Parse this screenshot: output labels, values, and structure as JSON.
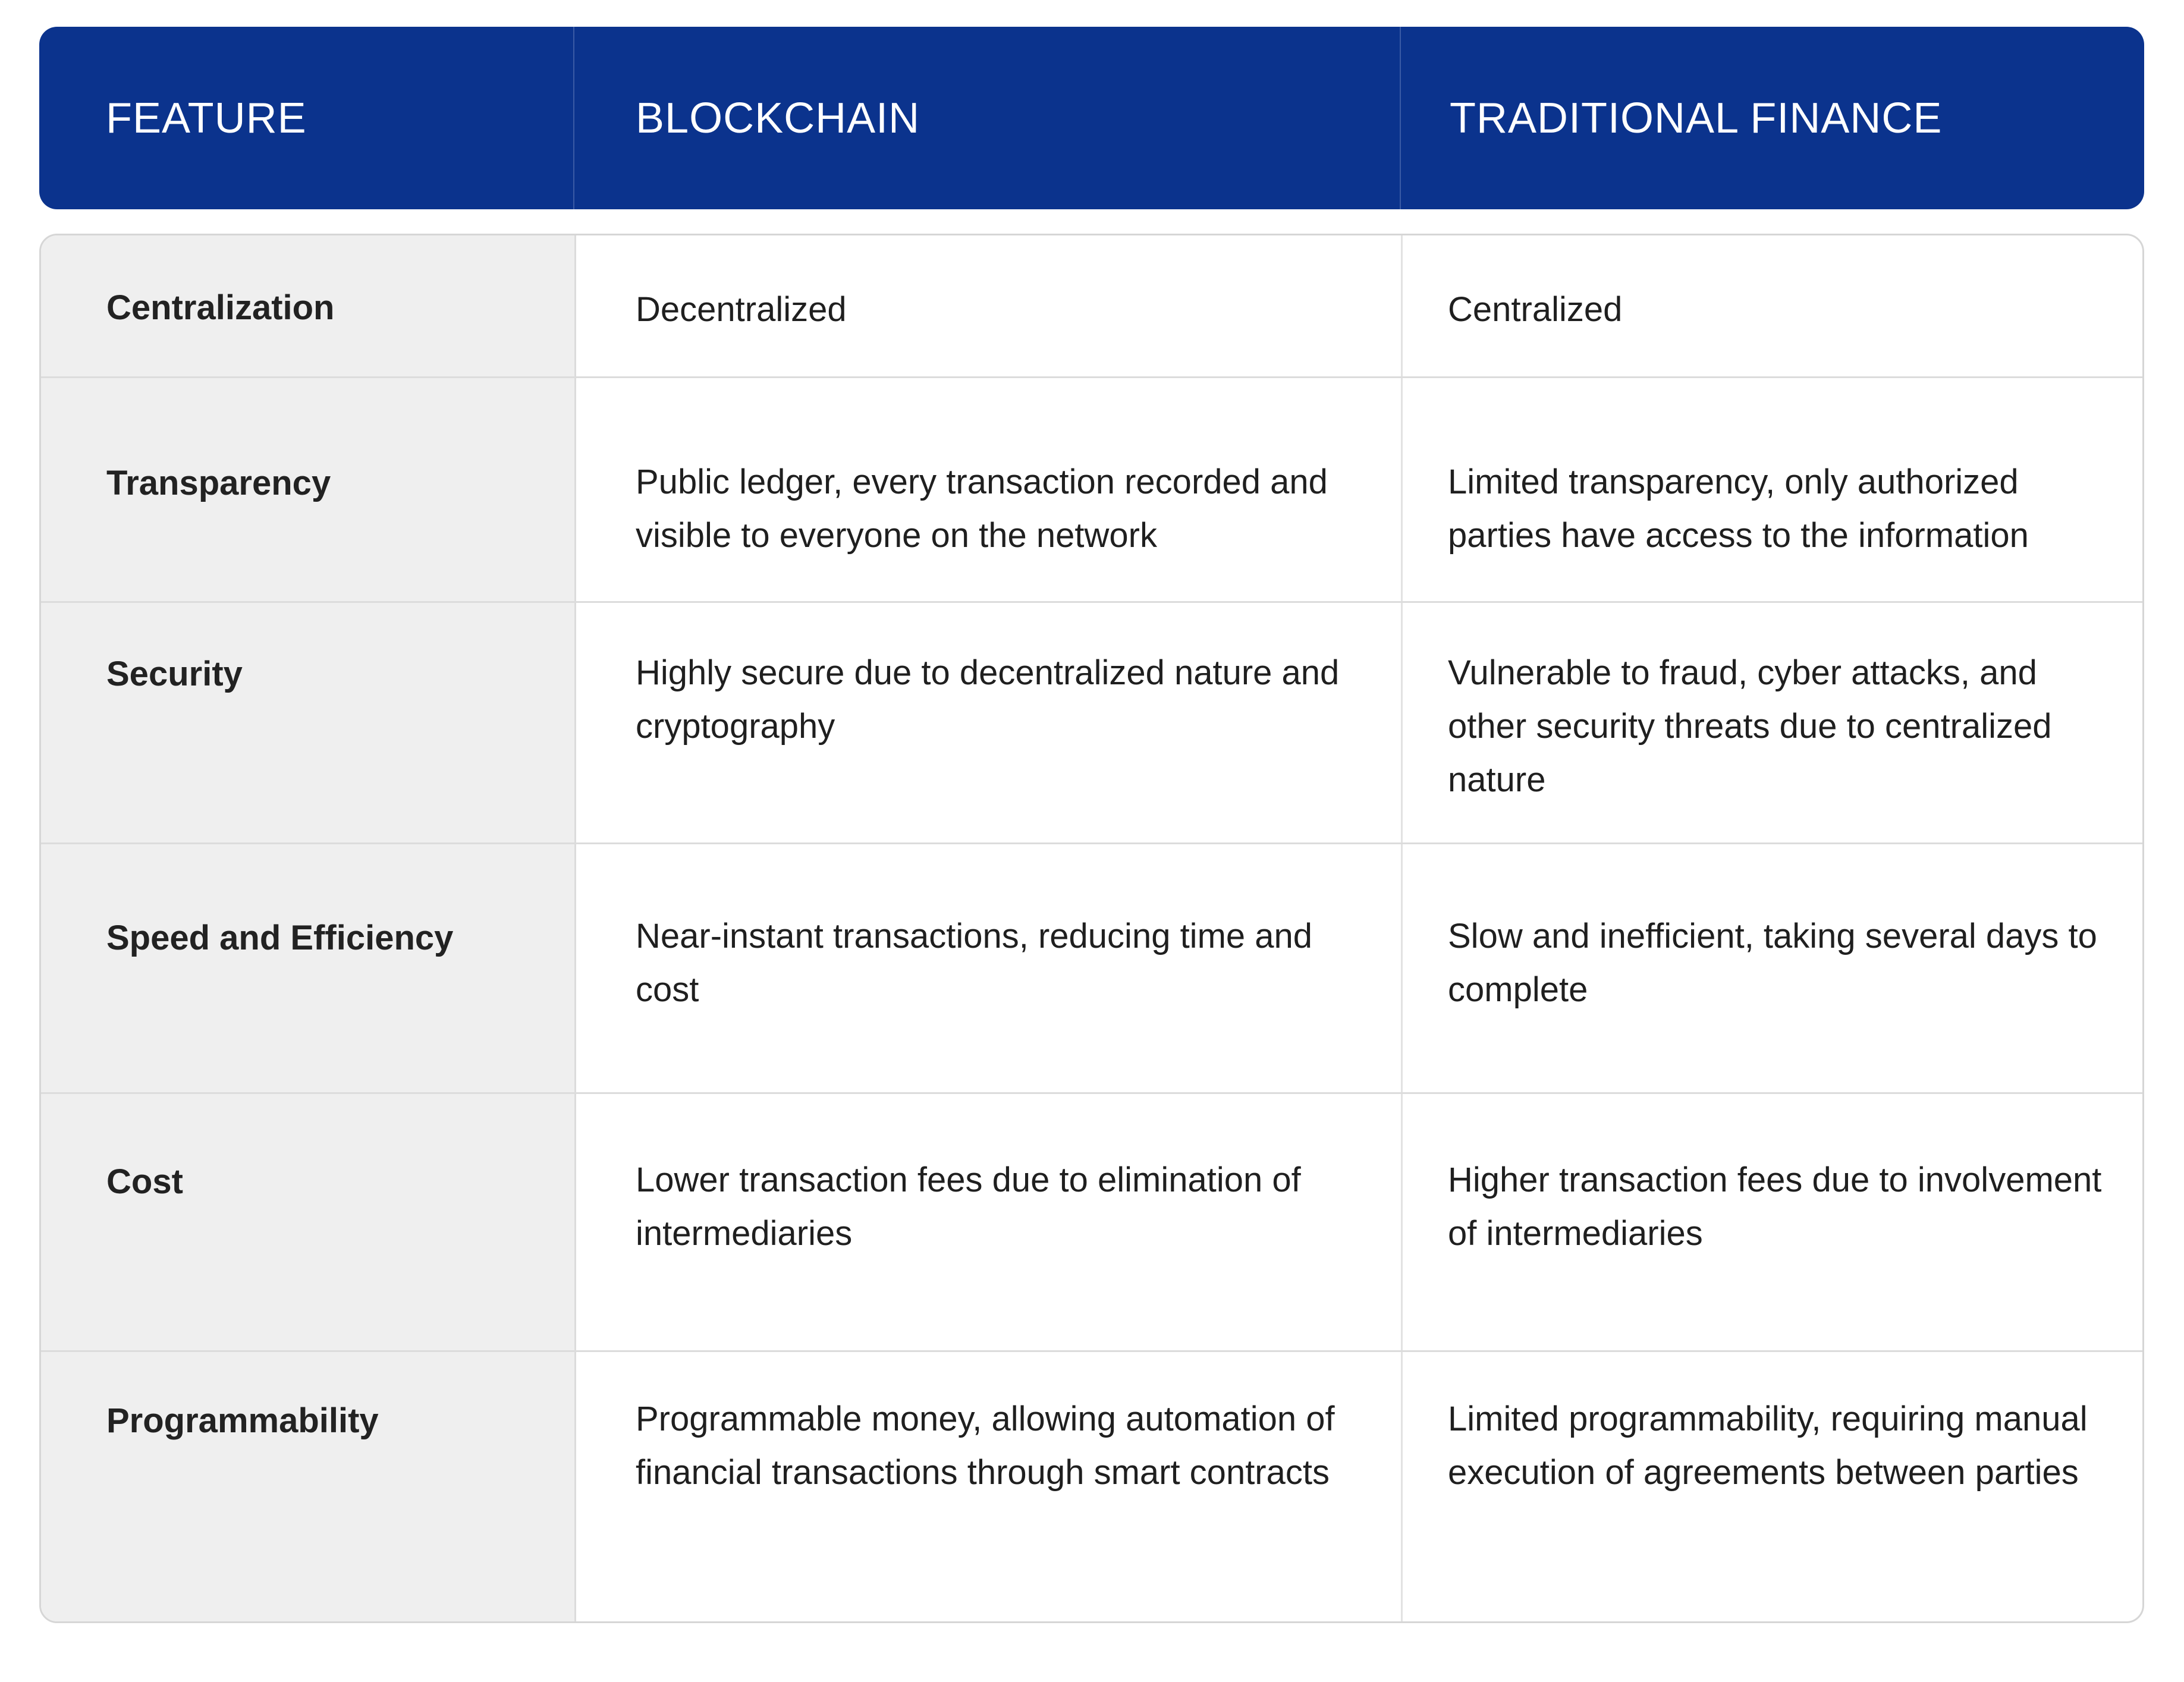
{
  "table": {
    "headers": [
      "FEATURE",
      "BLOCKCHAIN",
      "TRADITIONAL FINANCE"
    ],
    "rows": [
      {
        "feature": "Centralization",
        "blockchain": "Decentralized",
        "traditional": "Centralized"
      },
      {
        "feature": "Transparency",
        "blockchain": "Public ledger, every transaction recorded and visible to everyone on the network",
        "traditional": "Limited transparency, only authorized parties have access to the information"
      },
      {
        "feature": "Security",
        "blockchain": "Highly secure due to decentralized nature and cryptography",
        "traditional": "Vulnerable to fraud, cyber attacks, and other security threats due to centralized nature"
      },
      {
        "feature": "Speed and Efficiency",
        "blockchain": "Near-instant transactions, reducing time and cost",
        "traditional": "Slow and inefficient, taking several days to complete"
      },
      {
        "feature": "Cost",
        "blockchain": "Lower transaction fees due to elimination of intermediaries",
        "traditional": "Higher transaction fees due to involvement of intermediaries"
      },
      {
        "feature": "Programmability",
        "blockchain": "Programmable money, allowing automation of financial transactions through smart contracts",
        "traditional": "Limited programmability, requiring manual execution of agreements between parties"
      }
    ]
  },
  "colors": {
    "header_bg": "#0b338d",
    "header_text": "#ffffff",
    "feature_col_bg": "#efefef",
    "body_text": "#1f1f1f",
    "border": "#dcdcdc"
  }
}
